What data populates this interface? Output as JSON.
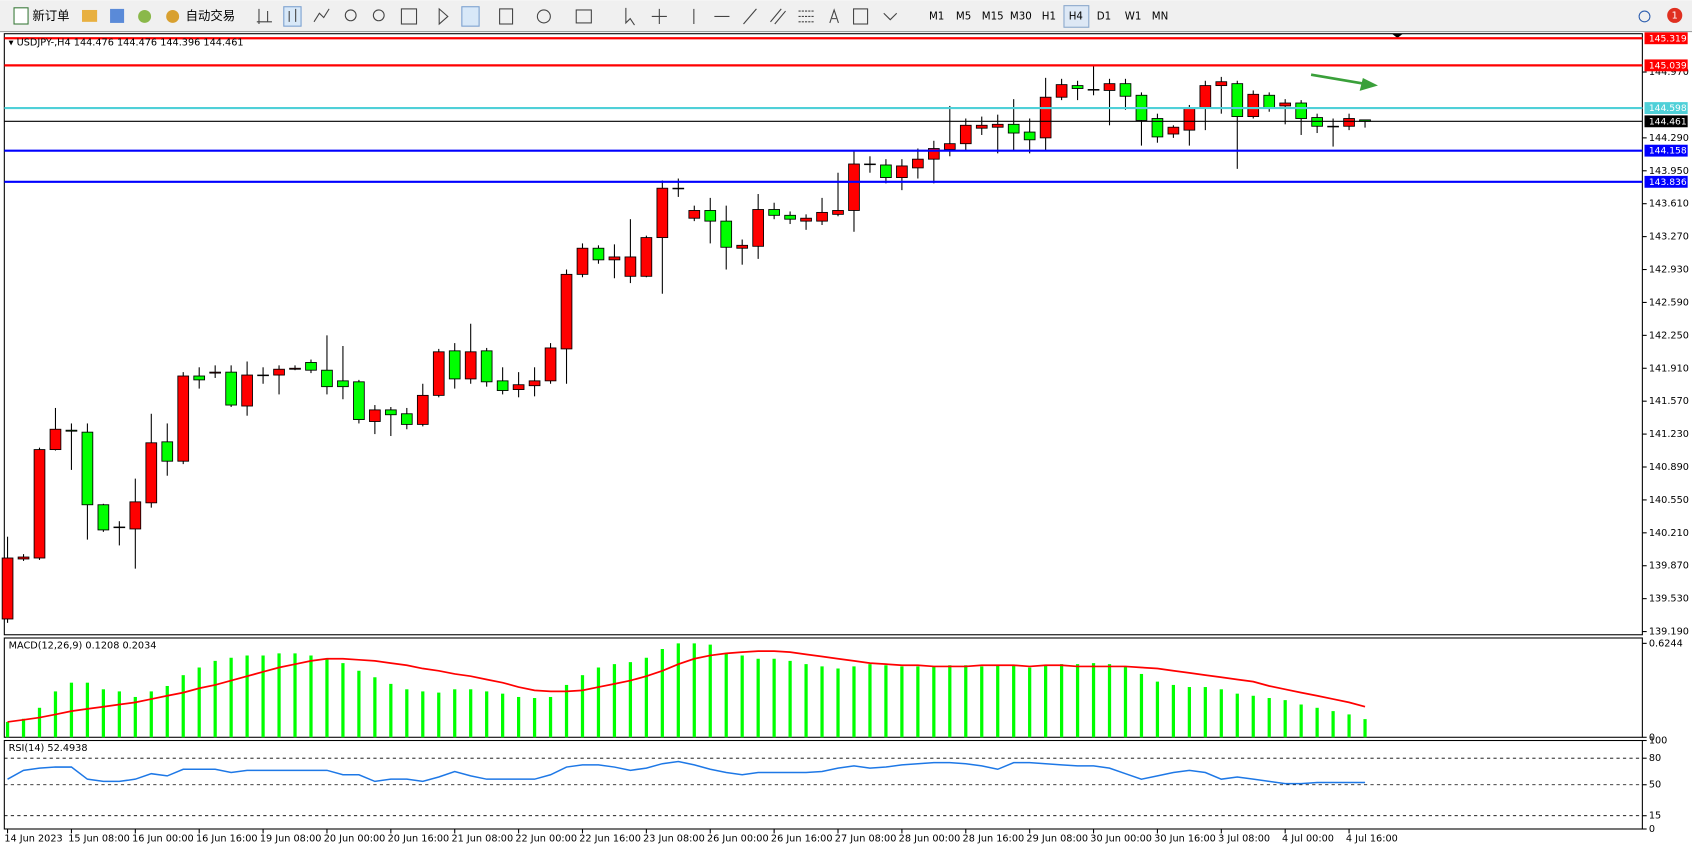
{
  "toolbar": {
    "new_order": "新订单",
    "auto_trading": "自动交易",
    "timeframes": [
      "M1",
      "M5",
      "M15",
      "M30",
      "H1",
      "H4",
      "D1",
      "W1",
      "MN"
    ],
    "active_timeframe": "H4",
    "notification_count": 1
  },
  "chart_data": [
    {
      "type": "candlestick",
      "title": "USDJPY-,H4",
      "up_color": "#ff0000",
      "down_color": "#00ff00",
      "ylim": [
        139.157,
        145.366
      ],
      "yticks": [
        {
          "value": 144.97,
          "label": "144.970"
        },
        {
          "value": 144.29,
          "label": "144.290"
        },
        {
          "value": 143.95,
          "label": "143.950"
        },
        {
          "value": 143.61,
          "label": "143.610"
        },
        {
          "value": 143.27,
          "label": "143.270"
        },
        {
          "value": 142.93,
          "label": "142.930"
        },
        {
          "value": 142.59,
          "label": "142.590"
        },
        {
          "value": 142.25,
          "label": "142.250"
        },
        {
          "value": 141.91,
          "label": "141.910"
        },
        {
          "value": 141.57,
          "label": "141.570"
        },
        {
          "value": 141.23,
          "label": "141.230"
        },
        {
          "value": 140.89,
          "label": "140.890"
        },
        {
          "value": 140.55,
          "label": "140.550"
        },
        {
          "value": 140.21,
          "label": "140.210"
        },
        {
          "value": 139.87,
          "label": "139.870"
        },
        {
          "value": 139.53,
          "label": "139.530"
        },
        {
          "value": 139.19,
          "label": "139.190"
        }
      ],
      "levels": [
        {
          "value": 145.319,
          "color": "#ff0000"
        },
        {
          "value": 145.039,
          "color": "#ff0000"
        },
        {
          "value": 144.598,
          "color": "#4fd0d8"
        },
        {
          "value": 144.461,
          "color": "#000000"
        },
        {
          "value": 144.158,
          "color": "#0000ff"
        },
        {
          "value": 143.836,
          "color": "#0000ff"
        }
      ],
      "categories": [
        "14 Jun 2023",
        null,
        null,
        null,
        "15 Jun 08:00",
        null,
        null,
        null,
        "16 Jun 00:00",
        null,
        null,
        null,
        "16 Jun 16:00",
        null,
        null,
        null,
        "19 Jun 08:00",
        null,
        null,
        null,
        "20 Jun 00:00",
        null,
        null,
        null,
        "20 Jun 16:00",
        null,
        null,
        null,
        "21 Jun 08:00",
        null,
        null,
        null,
        "22 Jun 00:00",
        null,
        null,
        null,
        "22 Jun 16:00",
        null,
        null,
        null,
        "23 Jun 08:00",
        null,
        null,
        null,
        "26 Jun 00:00",
        null,
        null,
        null,
        "26 Jun 16:00",
        null,
        null,
        null,
        "27 Jun 08:00",
        null,
        null,
        null,
        "28 Jun 00:00",
        null,
        null,
        null,
        "28 Jun 16:00",
        null,
        null,
        null,
        "29 Jun 08:00",
        null,
        null,
        null,
        "30 Jun 00:00",
        null,
        null,
        null,
        "30 Jun 16:00",
        null,
        null,
        null,
        "3 Jul 08:00",
        null,
        null,
        null,
        "4 Jul 00:00",
        null,
        null,
        null,
        "4 Jul 16:00",
        null
      ],
      "ohlc": [
        [
          139.32,
          140.17,
          139.28,
          139.95
        ],
        [
          139.94,
          139.99,
          139.92,
          139.96
        ],
        [
          139.95,
          141.09,
          139.93,
          141.07
        ],
        [
          141.07,
          141.5,
          141.06,
          141.28
        ],
        [
          141.27,
          141.34,
          140.86,
          141.26
        ],
        [
          141.25,
          141.34,
          140.14,
          140.5
        ],
        [
          140.5,
          140.51,
          140.22,
          140.24
        ],
        [
          140.27,
          140.33,
          140.08,
          140.27
        ],
        [
          140.25,
          140.77,
          139.84,
          140.53
        ],
        [
          140.52,
          141.44,
          140.47,
          141.14
        ],
        [
          141.15,
          141.34,
          140.8,
          140.95
        ],
        [
          140.95,
          141.87,
          140.92,
          141.83
        ],
        [
          141.83,
          141.92,
          141.7,
          141.79
        ],
        [
          141.86,
          141.94,
          141.81,
          141.87
        ],
        [
          141.87,
          141.94,
          141.51,
          141.53
        ],
        [
          141.52,
          141.98,
          141.42,
          141.84
        ],
        [
          141.84,
          141.92,
          141.75,
          141.84
        ],
        [
          141.84,
          141.94,
          141.64,
          141.9
        ],
        [
          141.9,
          141.94,
          141.89,
          141.91
        ],
        [
          141.97,
          142.0,
          141.86,
          141.89
        ],
        [
          141.89,
          142.25,
          141.64,
          141.72
        ],
        [
          141.78,
          142.14,
          141.59,
          141.72
        ],
        [
          141.77,
          141.79,
          141.34,
          141.38
        ],
        [
          141.36,
          141.53,
          141.23,
          141.48
        ],
        [
          141.48,
          141.51,
          141.21,
          141.43
        ],
        [
          141.44,
          141.5,
          141.28,
          141.33
        ],
        [
          141.33,
          141.75,
          141.31,
          141.63
        ],
        [
          141.63,
          142.11,
          141.61,
          142.08
        ],
        [
          142.09,
          142.17,
          141.7,
          141.8
        ],
        [
          141.8,
          142.37,
          141.75,
          142.08
        ],
        [
          142.09,
          142.12,
          141.72,
          141.77
        ],
        [
          141.78,
          141.92,
          141.64,
          141.68
        ],
        [
          141.69,
          141.87,
          141.61,
          141.74
        ],
        [
          141.73,
          141.92,
          141.62,
          141.78
        ],
        [
          141.78,
          142.17,
          141.75,
          142.12
        ],
        [
          142.11,
          142.93,
          141.75,
          142.88
        ],
        [
          142.88,
          143.2,
          142.85,
          143.15
        ],
        [
          143.15,
          143.18,
          142.99,
          143.03
        ],
        [
          143.03,
          143.19,
          142.84,
          143.06
        ],
        [
          142.86,
          143.45,
          142.79,
          143.06
        ],
        [
          142.86,
          143.28,
          142.85,
          143.26
        ],
        [
          143.26,
          143.85,
          142.68,
          143.77
        ],
        [
          143.77,
          143.87,
          143.68,
          143.77
        ],
        [
          143.46,
          143.59,
          143.43,
          143.54
        ],
        [
          143.54,
          143.67,
          143.2,
          143.43
        ],
        [
          143.43,
          143.59,
          142.93,
          143.16
        ],
        [
          143.15,
          143.24,
          142.98,
          143.18
        ],
        [
          143.17,
          143.71,
          143.04,
          143.55
        ],
        [
          143.55,
          143.62,
          143.45,
          143.49
        ],
        [
          143.49,
          143.53,
          143.4,
          143.45
        ],
        [
          143.43,
          143.5,
          143.34,
          143.46
        ],
        [
          143.43,
          143.67,
          143.39,
          143.52
        ],
        [
          143.5,
          143.93,
          143.48,
          143.54
        ],
        [
          143.54,
          144.15,
          143.32,
          144.02
        ],
        [
          144.02,
          144.1,
          143.93,
          144.02
        ],
        [
          144.01,
          144.07,
          143.82,
          143.88
        ],
        [
          143.88,
          144.07,
          143.75,
          144.0
        ],
        [
          143.98,
          144.18,
          143.87,
          144.07
        ],
        [
          144.07,
          144.26,
          143.82,
          144.18
        ],
        [
          144.17,
          144.62,
          144.1,
          144.23
        ],
        [
          144.23,
          144.49,
          144.15,
          144.42
        ],
        [
          144.39,
          144.51,
          144.32,
          144.42
        ],
        [
          144.4,
          144.53,
          144.13,
          144.43
        ],
        [
          144.43,
          144.69,
          144.15,
          144.34
        ],
        [
          144.35,
          144.49,
          144.13,
          144.27
        ],
        [
          144.29,
          144.91,
          144.15,
          144.71
        ],
        [
          144.71,
          144.9,
          144.68,
          144.84
        ],
        [
          144.83,
          144.88,
          144.68,
          144.8
        ],
        [
          144.79,
          145.04,
          144.73,
          144.79
        ],
        [
          144.78,
          144.9,
          144.42,
          144.85
        ],
        [
          144.85,
          144.9,
          144.58,
          144.72
        ],
        [
          144.73,
          144.76,
          144.21,
          144.47
        ],
        [
          144.49,
          144.54,
          144.24,
          144.3
        ],
        [
          144.33,
          144.42,
          144.29,
          144.4
        ],
        [
          144.37,
          144.63,
          144.21,
          144.6
        ],
        [
          144.6,
          144.88,
          144.37,
          144.83
        ],
        [
          144.83,
          144.92,
          144.54,
          144.87
        ],
        [
          144.85,
          144.88,
          143.97,
          144.51
        ],
        [
          144.51,
          144.78,
          144.49,
          144.74
        ],
        [
          144.73,
          144.76,
          144.56,
          144.6
        ],
        [
          144.62,
          144.69,
          144.43,
          144.65
        ],
        [
          144.65,
          144.68,
          144.32,
          144.49
        ],
        [
          144.5,
          144.54,
          144.34,
          144.41
        ],
        [
          144.41,
          144.49,
          144.2,
          144.41
        ],
        [
          144.41,
          144.54,
          144.37,
          144.49
        ],
        [
          144.476,
          144.476,
          144.396,
          144.461
        ]
      ]
    },
    {
      "type": "macd",
      "title": "MACD(12,26,9)",
      "ylim": [
        0,
        0.66
      ],
      "yticks": [
        0.6244,
        0
      ],
      "histogram": {
        "color": "#00ff00",
        "values": [
          0.102,
          0.123,
          0.196,
          0.305,
          0.363,
          0.363,
          0.319,
          0.305,
          0.268,
          0.305,
          0.341,
          0.413,
          0.464,
          0.508,
          0.529,
          0.544,
          0.544,
          0.558,
          0.558,
          0.544,
          0.522,
          0.493,
          0.442,
          0.399,
          0.355,
          0.319,
          0.305,
          0.297,
          0.319,
          0.319,
          0.305,
          0.29,
          0.268,
          0.261,
          0.268,
          0.348,
          0.413,
          0.464,
          0.486,
          0.5,
          0.529,
          0.587,
          0.624,
          0.624,
          0.616,
          0.558,
          0.544,
          0.522,
          0.522,
          0.508,
          0.486,
          0.471,
          0.457,
          0.471,
          0.486,
          0.479,
          0.471,
          0.471,
          0.471,
          0.479,
          0.479,
          0.471,
          0.479,
          0.479,
          0.464,
          0.479,
          0.486,
          0.486,
          0.493,
          0.486,
          0.471,
          0.421,
          0.37,
          0.348,
          0.334,
          0.334,
          0.319,
          0.29,
          0.276,
          0.261,
          0.247,
          0.218,
          0.196,
          0.174,
          0.152,
          0.1208
        ]
      },
      "signal": {
        "color": "#ff0000",
        "values": [
          0.102,
          0.116,
          0.131,
          0.152,
          0.174,
          0.189,
          0.203,
          0.218,
          0.232,
          0.254,
          0.276,
          0.297,
          0.326,
          0.348,
          0.377,
          0.406,
          0.435,
          0.464,
          0.486,
          0.508,
          0.522,
          0.522,
          0.515,
          0.508,
          0.493,
          0.479,
          0.457,
          0.442,
          0.421,
          0.406,
          0.384,
          0.363,
          0.334,
          0.312,
          0.305,
          0.305,
          0.312,
          0.334,
          0.355,
          0.377,
          0.406,
          0.442,
          0.486,
          0.522,
          0.544,
          0.558,
          0.566,
          0.573,
          0.573,
          0.566,
          0.551,
          0.537,
          0.522,
          0.508,
          0.493,
          0.486,
          0.479,
          0.479,
          0.471,
          0.471,
          0.471,
          0.479,
          0.479,
          0.479,
          0.471,
          0.479,
          0.479,
          0.471,
          0.471,
          0.471,
          0.471,
          0.464,
          0.457,
          0.442,
          0.428,
          0.413,
          0.399,
          0.384,
          0.37,
          0.341,
          0.319,
          0.297,
          0.276,
          0.254,
          0.232,
          0.2034
        ]
      }
    },
    {
      "type": "line",
      "title": "RSI(14)",
      "color": "#1e78e6",
      "ylim": [
        0,
        100
      ],
      "yticks": [
        100,
        80,
        50,
        15,
        0
      ],
      "levels": [
        80,
        50,
        15
      ],
      "values": [
        56.3,
        66.3,
        68.8,
        70,
        70,
        56.3,
        53.8,
        53.8,
        56.3,
        62.5,
        60,
        67.5,
        67.5,
        67.5,
        63.8,
        66.3,
        66.3,
        66.3,
        66.3,
        66.3,
        66.3,
        61.3,
        61.3,
        53.8,
        56.3,
        56.3,
        53.8,
        58.8,
        65,
        60,
        56.3,
        56.3,
        56.3,
        56.3,
        61.3,
        70,
        72.5,
        72.5,
        70,
        66.3,
        68.8,
        73.8,
        76.3,
        72.5,
        67.5,
        63.8,
        61.3,
        63.8,
        63.8,
        63.8,
        63.8,
        65,
        68.8,
        71.3,
        68.8,
        70,
        72.5,
        73.8,
        75,
        75,
        73.8,
        71.3,
        67.5,
        75,
        75,
        73.8,
        72.5,
        71.3,
        71.3,
        68.8,
        62.5,
        56.3,
        60,
        63.8,
        66.3,
        63.8,
        56.3,
        58.8,
        56.3,
        53.8,
        51.3,
        51.3,
        52.5,
        52.5,
        52.5,
        52.4938
      ]
    }
  ]
}
